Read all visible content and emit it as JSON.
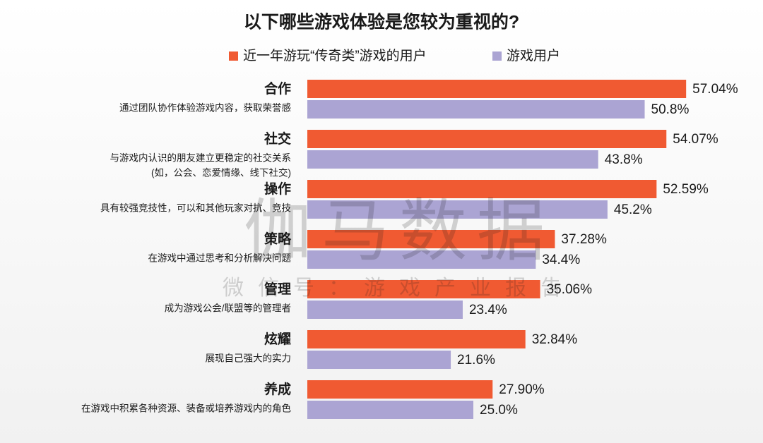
{
  "chart_data": {
    "type": "bar",
    "orientation": "horizontal",
    "title": "以下哪些游戏体验是您较为重视的?",
    "categories": [
      "合作",
      "社交",
      "操作",
      "策略",
      "管理",
      "炫耀",
      "养成"
    ],
    "descriptions": [
      [
        "通过团队协作体验游戏内容，获取荣誉感"
      ],
      [
        "与游戏内认识的朋友建立更稳定的社交关系",
        "(如，公会、恋爱情缘、线下社交)"
      ],
      [
        "具有较强竞技性，可以和其他玩家对抗、竞技"
      ],
      [
        "在游戏中通过思考和分析解决问题"
      ],
      [
        "成为游戏公会/联盟等的管理者"
      ],
      [
        "展现自己强大的实力"
      ],
      [
        "在游戏中积累各种资源、装备或培养游戏内的角色"
      ]
    ],
    "series": [
      {
        "name": "近一年游玩“传奇类”游戏的用户",
        "color": "#f05a32",
        "values": [
          57.04,
          54.07,
          52.59,
          37.28,
          35.06,
          32.84,
          27.9
        ],
        "value_labels": [
          "57.04%",
          "54.07%",
          "52.59%",
          "37.28%",
          "35.06%",
          "32.84%",
          "27.90%"
        ]
      },
      {
        "name": "游戏用户",
        "color": "#aba4d3",
        "values": [
          50.8,
          43.8,
          45.2,
          34.4,
          23.4,
          21.6,
          25.0
        ],
        "value_labels": [
          "50.8%",
          "43.8%",
          "45.2%",
          "34.4%",
          "23.4%",
          "21.6%",
          "25.0%"
        ]
      }
    ],
    "watermark": {
      "main": "伽马数据",
      "sub": "微信号：游戏产业报告"
    }
  }
}
